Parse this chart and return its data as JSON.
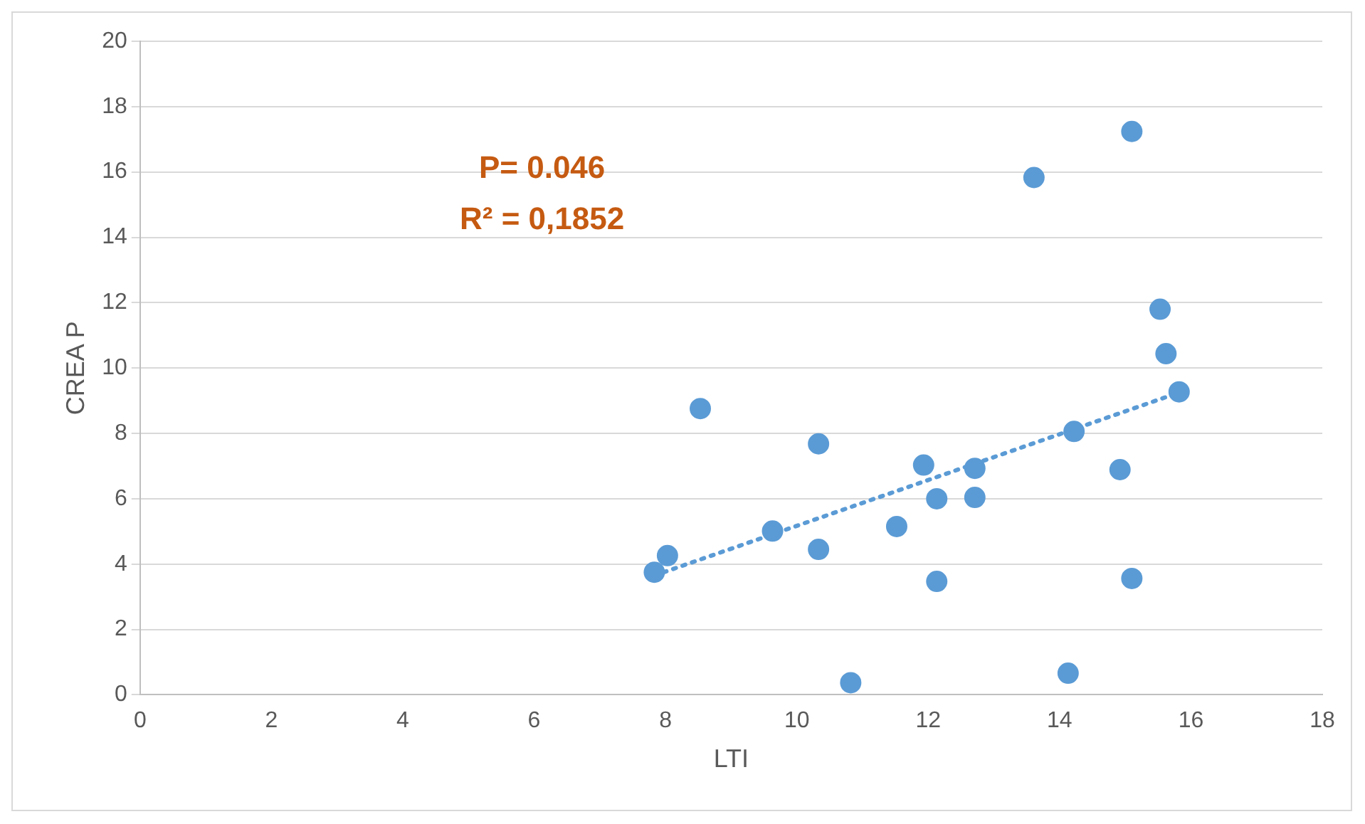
{
  "chart_data": {
    "type": "scatter",
    "xlabel": "LTI",
    "ylabel": "CREA P",
    "xlim": [
      0,
      18
    ],
    "xticks": [
      0,
      2,
      4,
      6,
      8,
      10,
      12,
      14,
      16,
      18
    ],
    "ylim": [
      0,
      20
    ],
    "yticks": [
      0,
      2,
      4,
      6,
      8,
      10,
      12,
      14,
      16,
      18,
      20
    ],
    "grid": "y",
    "legend": false,
    "marker": "circle",
    "annotations": [
      "P= 0.046",
      "R² = 0,1852"
    ],
    "series": [
      {
        "color": "#5b9bd5",
        "x": [
          7.83,
          8.03,
          8.53,
          9.63,
          10.33,
          10.33,
          10.82,
          11.52,
          11.93,
          12.13,
          12.13,
          12.71,
          12.71,
          13.61,
          14.22,
          14.13,
          14.92,
          15.1,
          15.1,
          15.53,
          15.62,
          15.82
        ],
        "values": [
          3.75,
          4.26,
          8.76,
          5.01,
          7.68,
          4.45,
          0.37,
          5.15,
          7.03,
          6.0,
          3.47,
          6.93,
          6.04,
          15.83,
          8.06,
          0.66,
          6.89,
          17.24,
          3.56,
          11.8,
          10.44,
          9.27
        ]
      },
      {
        "type": "line",
        "color": "#5b9bd5",
        "line_style": "dotted",
        "marker": "none",
        "x": [
          7.83,
          15.82
        ],
        "values": [
          3.65,
          9.25
        ]
      }
    ]
  }
}
